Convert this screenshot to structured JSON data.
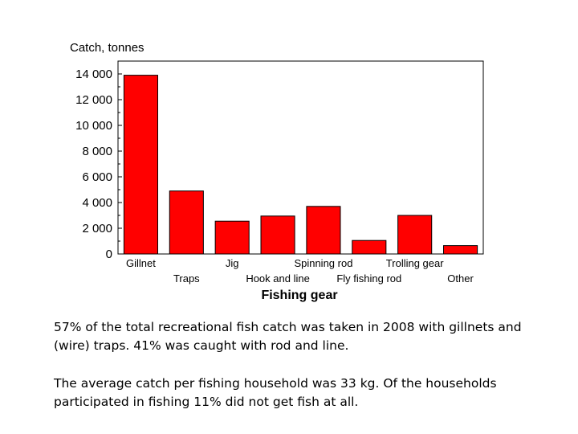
{
  "chart_data": {
    "type": "bar",
    "ylabel": "Catch, tonnes",
    "xlabel": "Fishing gear",
    "categories": [
      "Gillnet",
      "Traps",
      "Jig",
      "Hook and line",
      "Spinning rod",
      "Fly fishing rod",
      "Trolling gear",
      "Other"
    ],
    "values": [
      13900,
      4900,
      2550,
      2950,
      3700,
      1050,
      3000,
      650
    ],
    "ylim": [
      0,
      15000
    ],
    "yticks": [
      0,
      2000,
      4000,
      6000,
      8000,
      10000,
      12000,
      14000
    ],
    "ytick_labels": [
      "0",
      "2 000",
      "4 000",
      "6 000",
      "8 000",
      "10 000",
      "12 000",
      "14 000"
    ],
    "grid": false,
    "bar_color": "#ff0000",
    "bar_edge_color": "#000000"
  },
  "captions": {
    "paragraph_1": "57% of the total recreational fish catch was taken in 2008 with gillnets and (wire) traps. 41% was caught with rod and line.",
    "paragraph_2": "The average catch per fishing household was 33 kg. Of the households participated in fishing 11% did not get fish at all."
  }
}
